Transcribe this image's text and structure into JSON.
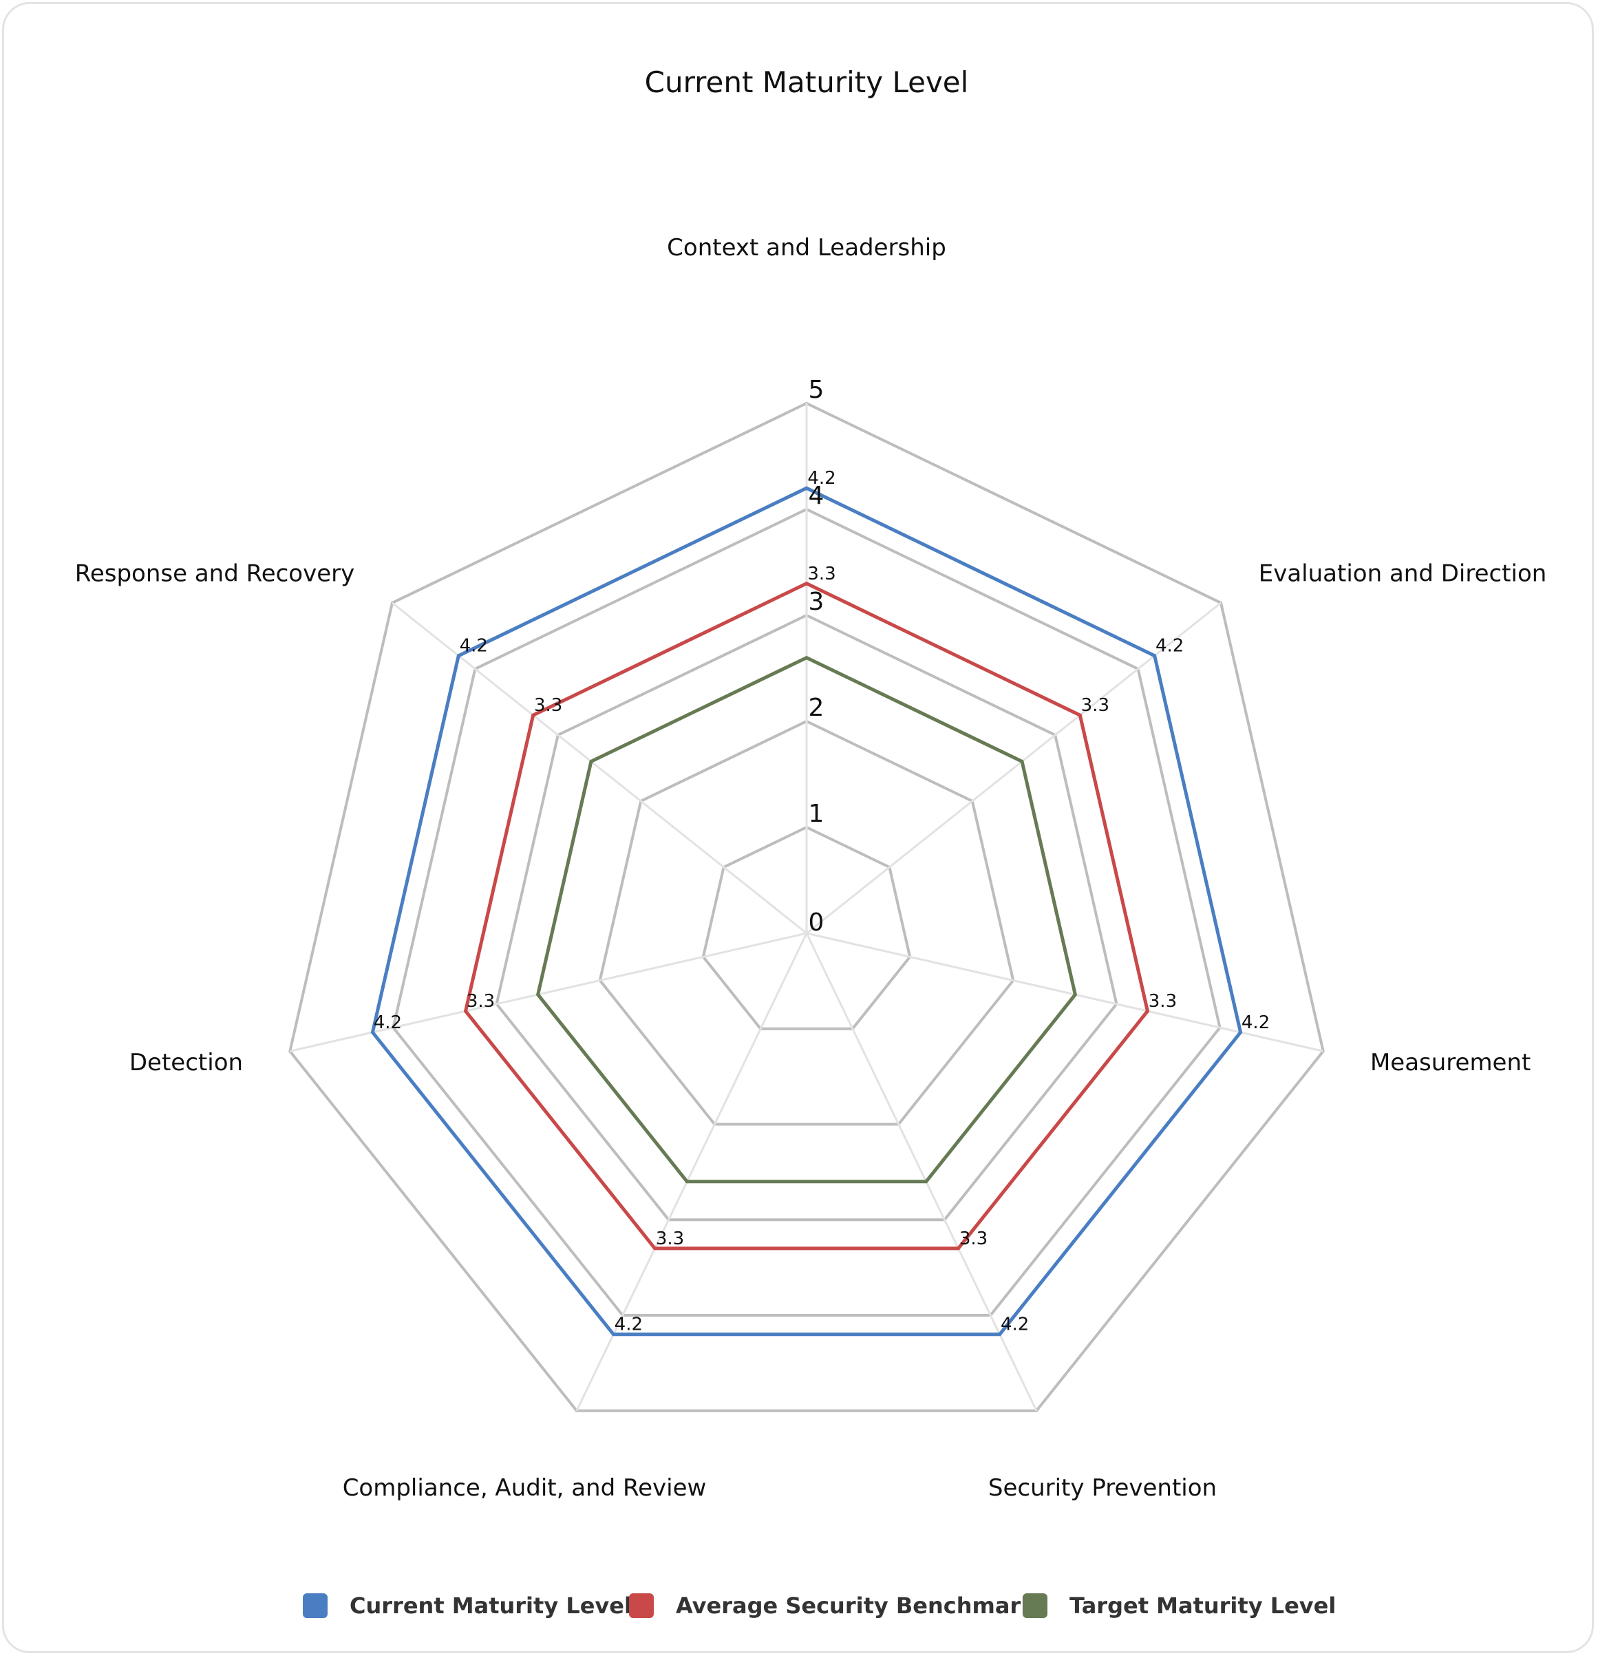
{
  "chart_data": {
    "type": "radar",
    "title": "Current Maturity Level",
    "axes": [
      "Context and Leadership",
      "Evaluation and Direction",
      "Measurement",
      "Security Prevention",
      "Compliance, Audit, and Review",
      "Detection",
      "Response and Recovery"
    ],
    "r_range": [
      0,
      5
    ],
    "ticks": [
      "0",
      "1",
      "2",
      "3",
      "4",
      "5"
    ],
    "grid": true,
    "legend_position": "bottom",
    "series": [
      {
        "name": "Current Maturity Level",
        "color": "#4a7ec2",
        "values": [
          4.2,
          4.2,
          4.2,
          4.2,
          4.2,
          4.2,
          4.2
        ],
        "labels": [
          "4.2",
          "4.2",
          "4.2",
          "4.2",
          "4.2",
          "4.2",
          "4.2"
        ]
      },
      {
        "name": "Average Security Benchmark",
        "color": "#c94848",
        "values": [
          3.3,
          3.3,
          3.3,
          3.3,
          3.3,
          3.3,
          3.3
        ],
        "labels": [
          "3.3",
          "3.3",
          "3.3",
          "3.3",
          "3.3",
          "3.3",
          "3.3"
        ]
      },
      {
        "name": "Target Maturity Level",
        "color": "#667a54",
        "values": [
          2.6,
          2.6,
          2.6,
          2.6,
          2.6,
          2.6,
          2.6
        ]
      }
    ]
  }
}
